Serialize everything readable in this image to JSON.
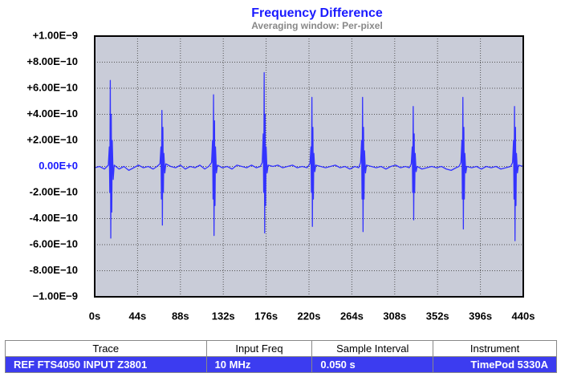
{
  "chart_data": {
    "type": "line",
    "title": "Frequency Difference",
    "subtitle": "Averaging window: Per-pixel",
    "color": "#3333ff",
    "grid": true,
    "xlim": [
      0,
      440
    ],
    "xticks": [
      {
        "value": 0,
        "label": "0s"
      },
      {
        "value": 44,
        "label": "44s"
      },
      {
        "value": 88,
        "label": "88s"
      },
      {
        "value": 132,
        "label": "132s"
      },
      {
        "value": 176,
        "label": "176s"
      },
      {
        "value": 220,
        "label": "220s"
      },
      {
        "value": 264,
        "label": "264s"
      },
      {
        "value": 308,
        "label": "308s"
      },
      {
        "value": 352,
        "label": "352s"
      },
      {
        "value": 396,
        "label": "396s"
      },
      {
        "value": 440,
        "label": "440s"
      }
    ],
    "ylim": [
      -1e-09,
      1e-09
    ],
    "yticks": [
      {
        "value": 1e-09,
        "label": "+1.00E−9"
      },
      {
        "value": 8e-10,
        "label": "+8.00E−10"
      },
      {
        "value": 6e-10,
        "label": "+6.00E−10"
      },
      {
        "value": 4e-10,
        "label": "+4.00E−10"
      },
      {
        "value": 2e-10,
        "label": "+2.00E−10"
      },
      {
        "value": 0,
        "label": "0.00E+0"
      },
      {
        "value": -2e-10,
        "label": "-2.00E−10"
      },
      {
        "value": -4e-10,
        "label": "-4.00E−10"
      },
      {
        "value": -6e-10,
        "label": "-6.00E−10"
      },
      {
        "value": -8e-10,
        "label": "-8.00E−10"
      },
      {
        "value": -1e-09,
        "label": "−1.00E−9"
      }
    ],
    "x": [
      0,
      5,
      10,
      14,
      15,
      15.5,
      16,
      16.5,
      17,
      17.5,
      18,
      19,
      20,
      25,
      30,
      35,
      40,
      45,
      50,
      55,
      60,
      64,
      67,
      68,
      68.5,
      69,
      69.5,
      70,
      70.5,
      71,
      72,
      73,
      78,
      83,
      88,
      93,
      98,
      103,
      108,
      113,
      117,
      120,
      121,
      121.5,
      122,
      122.5,
      123,
      123.5,
      124,
      125,
      126,
      131,
      136,
      141,
      146,
      151,
      156,
      161,
      166,
      170,
      172,
      173,
      173.5,
      174,
      174.5,
      175,
      175.5,
      176,
      177,
      178,
      183,
      188,
      193,
      198,
      203,
      208,
      213,
      218,
      221,
      222,
      222.5,
      223,
      223.5,
      224,
      224.5,
      225,
      226,
      227,
      232,
      237,
      242,
      247,
      252,
      257,
      262,
      267,
      271,
      273,
      274,
      274.5,
      275,
      275.5,
      276,
      276.5,
      277,
      278,
      279,
      284,
      289,
      294,
      299,
      304,
      309,
      314,
      319,
      323,
      325,
      326,
      326.5,
      327,
      327.5,
      328,
      328.5,
      329,
      330,
      331,
      336,
      341,
      346,
      351,
      356,
      361,
      366,
      371,
      374,
      376,
      377,
      377.5,
      378,
      378.5,
      379,
      379.5,
      380,
      381,
      382,
      387,
      392,
      397,
      402,
      407,
      412,
      417,
      422,
      427,
      429,
      430,
      430.5,
      431,
      431.5,
      432,
      432.5,
      433,
      434,
      435,
      440
    ],
    "values": [
      -1e-11,
      0,
      -2e-11,
      1e-11,
      1.5e-10,
      -2e-10,
      6.6e-10,
      -5.5e-10,
      4e-10,
      -3.5e-10,
      2e-10,
      -1e-10,
      1e-11,
      -2e-11,
      0,
      -3e-11,
      -1e-11,
      1e-11,
      -1e-11,
      0,
      -2e-11,
      0,
      2e-11,
      1.5e-10,
      -2.5e-10,
      4.3e-10,
      -4.5e-10,
      3e-10,
      -2e-10,
      1e-10,
      -5e-11,
      2e-11,
      0,
      -1e-11,
      1e-11,
      -2e-11,
      0,
      -1e-11,
      1e-11,
      -2e-11,
      0,
      3e-11,
      2e-10,
      -2.5e-10,
      5.5e-10,
      -5.3e-10,
      3.5e-10,
      -3e-10,
      1.5e-10,
      -5e-11,
      1e-11,
      -1e-11,
      0,
      -2e-11,
      1e-11,
      0,
      -1e-11,
      1e-11,
      -1e-11,
      0,
      3e-11,
      2.5e-10,
      -2e-10,
      7.2e-10,
      -5.1e-10,
      4e-10,
      -3e-10,
      1.5e-10,
      -5e-11,
      1e-11,
      0,
      1e-11,
      -1e-11,
      0,
      1e-11,
      -1e-11,
      0,
      -1e-11,
      2e-11,
      1.5e-10,
      -2e-10,
      5.3e-10,
      -4.6e-10,
      3e-10,
      -2.5e-10,
      1e-10,
      -4e-11,
      1e-11,
      0,
      -1e-11,
      0,
      1e-11,
      -1e-11,
      0,
      -2e-11,
      0,
      -1e-11,
      3e-11,
      2e-10,
      -2.5e-10,
      5.3e-10,
      -5e-10,
      3e-10,
      -2.5e-10,
      1.2e-10,
      -5e-11,
      1e-11,
      0,
      -1e-11,
      0,
      -2e-11,
      0,
      1e-11,
      -1e-11,
      0,
      -1e-11,
      2e-11,
      1.5e-10,
      -2e-10,
      4.6e-10,
      -4.1e-10,
      2.5e-10,
      -2e-10,
      1e-10,
      -4e-11,
      0,
      -2e-11,
      -1e-11,
      0,
      -1e-11,
      0,
      -2e-11,
      -3e-11,
      -1e-11,
      0,
      3e-11,
      2e-10,
      -2.5e-10,
      5.3e-10,
      -4.8e-10,
      3e-10,
      -2.5e-10,
      1e-10,
      -5e-11,
      0,
      -1e-11,
      0,
      -2e-11,
      0,
      -1e-11,
      0,
      -2e-11,
      -1e-11,
      0,
      3e-11,
      2e-10,
      -2.5e-10,
      4.6e-10,
      -5.7e-10,
      3e-10,
      -3e-10,
      1e-10,
      -5e-11,
      1e-11,
      0
    ]
  },
  "table": {
    "headers": [
      "Trace",
      "Input Freq",
      "Sample Interval",
      "Instrument"
    ],
    "rows": [
      [
        "REF FTS4050 INPUT Z3801",
        "10 MHz",
        "0.050 s",
        "TimePod 5330A"
      ]
    ]
  }
}
